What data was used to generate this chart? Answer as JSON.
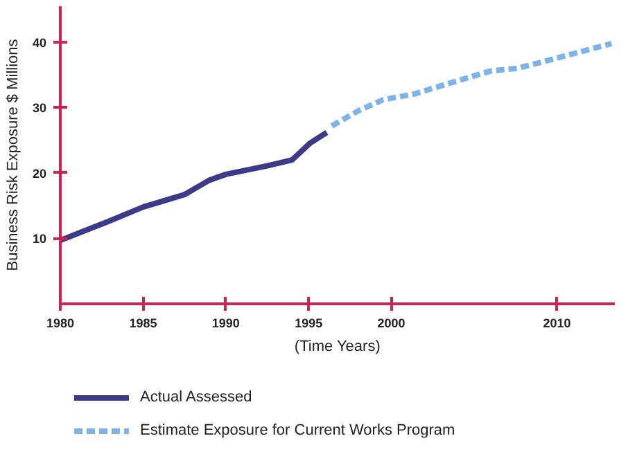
{
  "chart_data": {
    "type": "line",
    "xlabel": "(Time Years)",
    "ylabel": "Business Risk Exposure $ Millions",
    "xlim": [
      1980,
      2013.5
    ],
    "ylim": [
      0,
      45.5
    ],
    "xticks": [
      1980,
      1985,
      1990,
      1995,
      2000,
      2010
    ],
    "yticks": [
      10,
      20,
      30,
      40
    ],
    "grid": false,
    "legend": "bottom",
    "marker": "none",
    "series": [
      {
        "name": "Actual Assessed",
        "color": "#3d3a8a",
        "line_style": "solid",
        "x": [
          1980,
          1983,
          1985,
          1987.5,
          1989,
          1990,
          1992.5,
          1994,
          1995.1,
          1996.1
        ],
        "values": [
          9.7,
          12.7,
          14.8,
          16.7,
          18.9,
          19.8,
          21.1,
          22.0,
          24.6,
          26.2
        ]
      },
      {
        "name": "Estimate Exposure for Current Works Program",
        "color": "#7fb3e8",
        "line_style": "dashed",
        "x": [
          1996.4,
          1998,
          1999.5,
          2001.4,
          2004,
          2006,
          2007.6,
          2009,
          2013.3
        ],
        "values": [
          27.2,
          29.5,
          31.2,
          32.1,
          34.1,
          35.6,
          36.0,
          36.9,
          39.8
        ]
      }
    ]
  }
}
